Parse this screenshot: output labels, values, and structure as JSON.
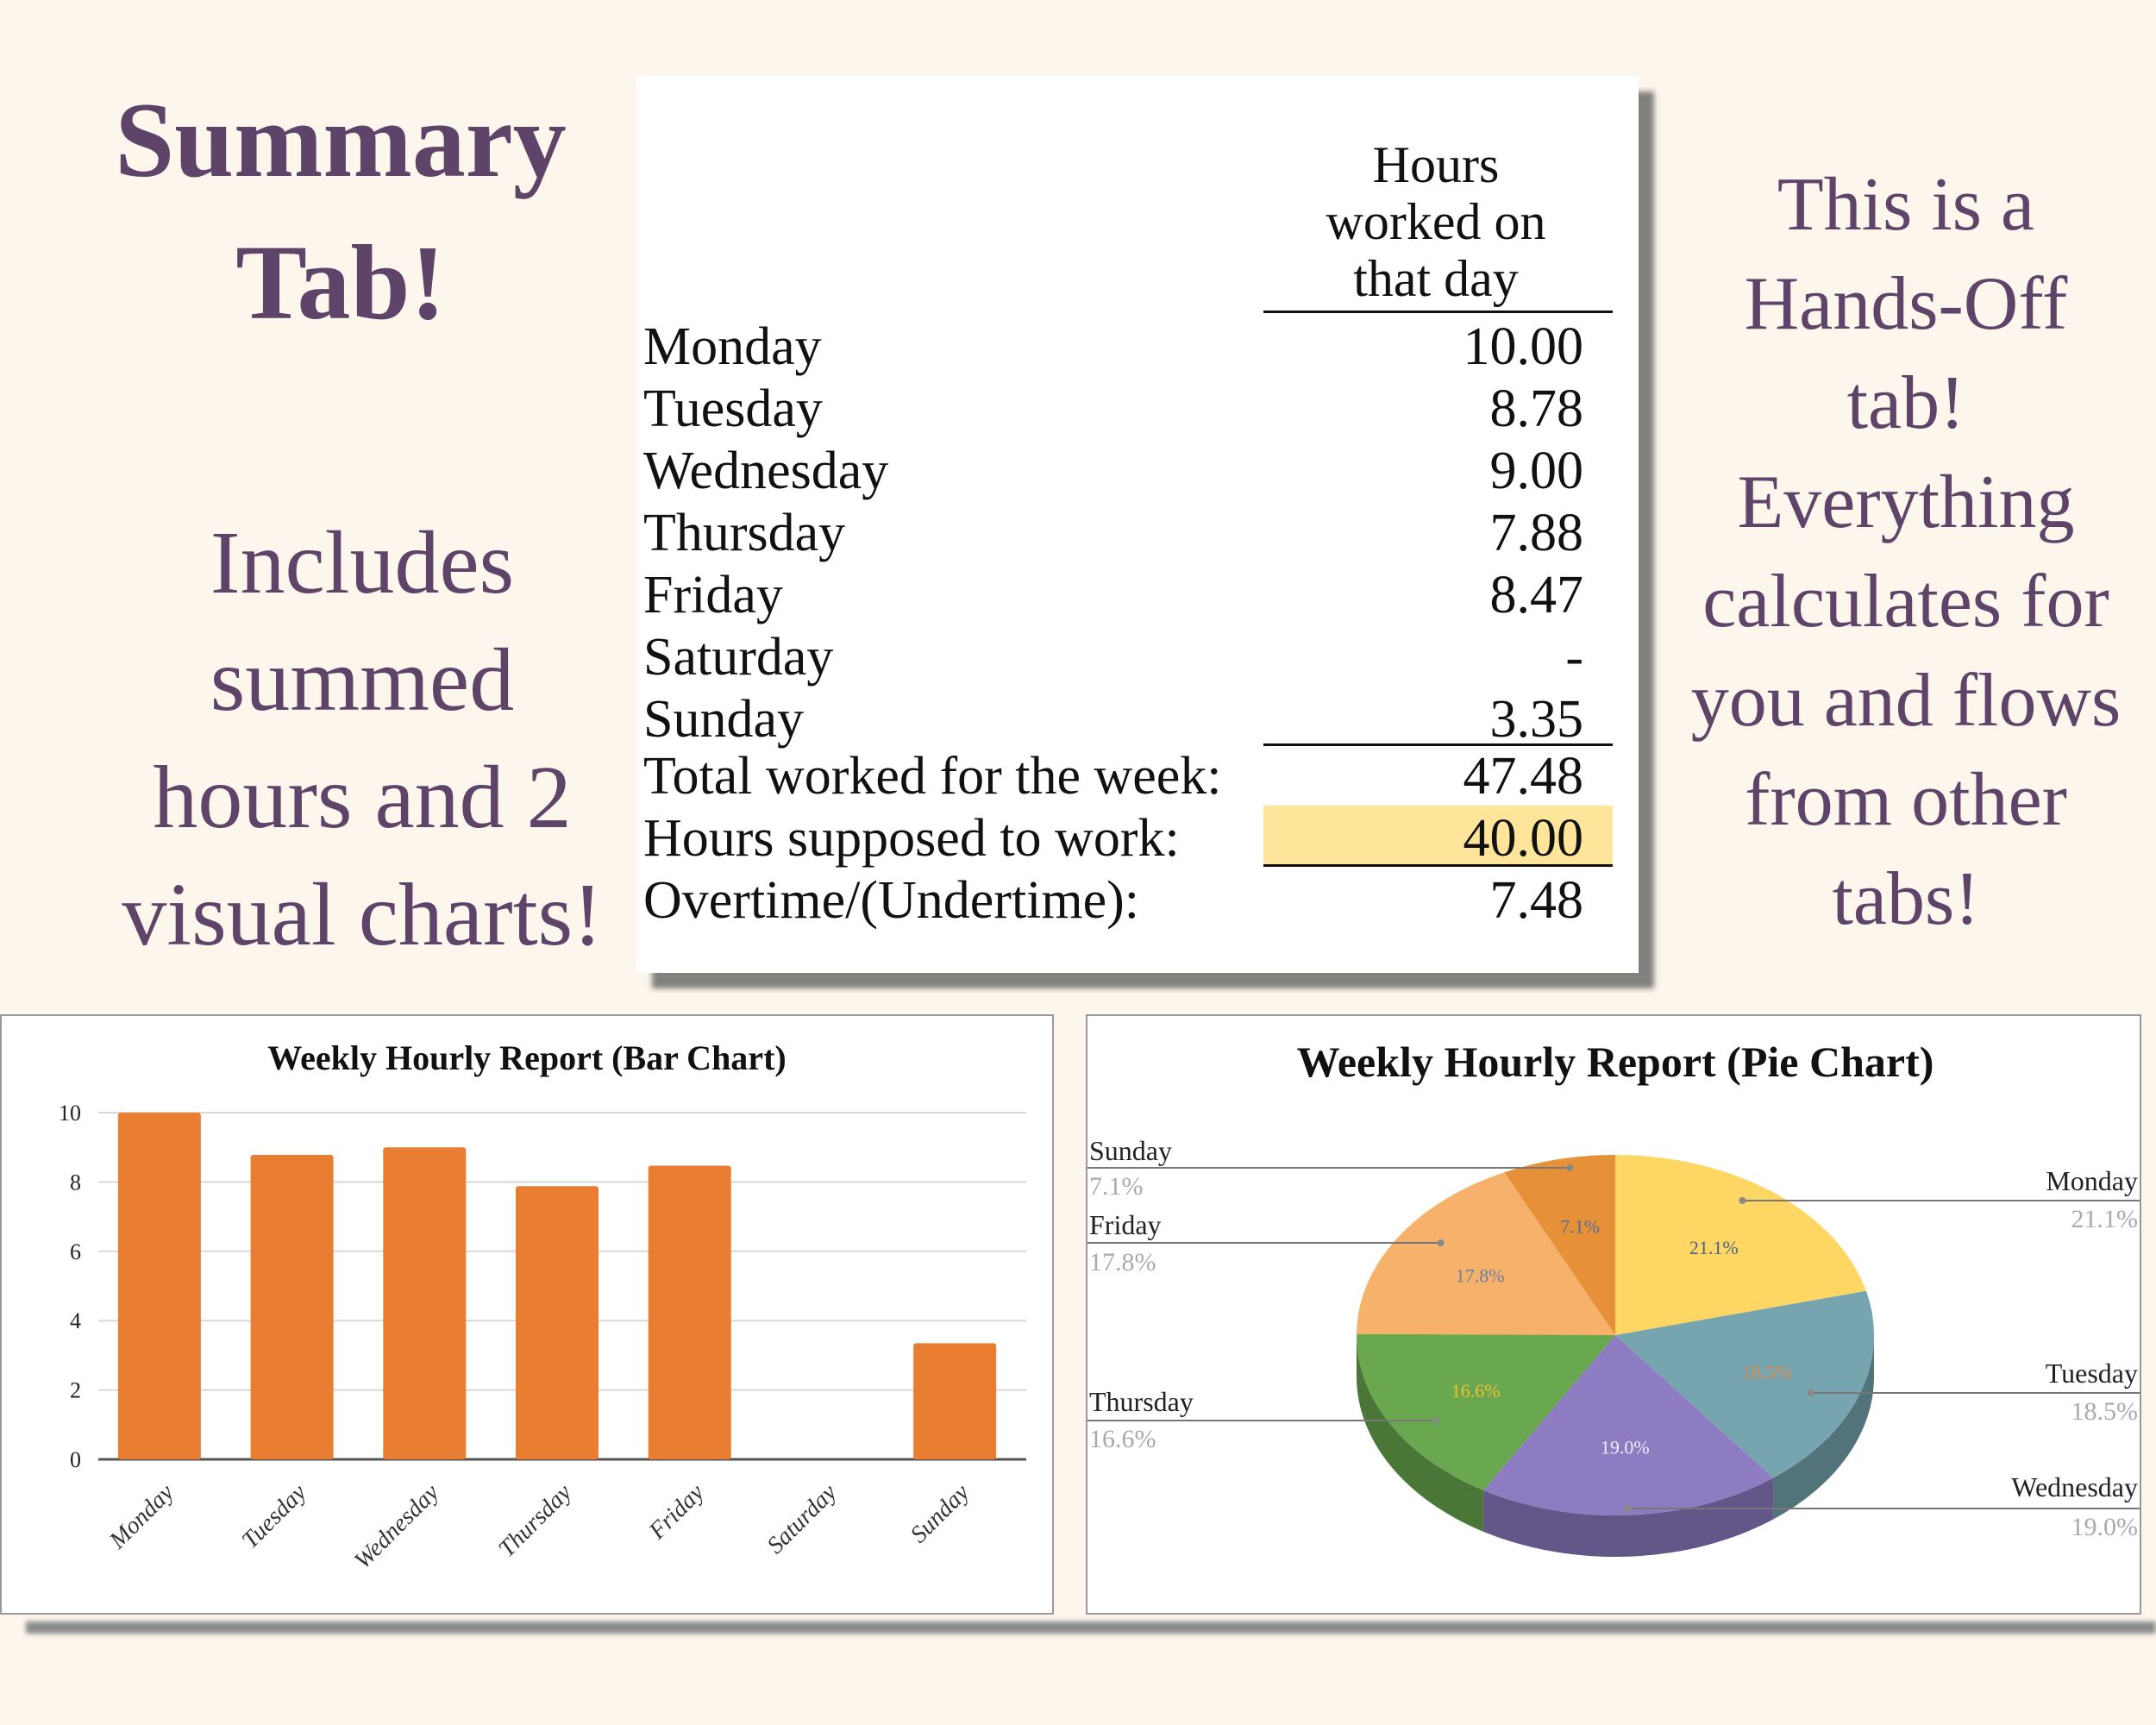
{
  "title": [
    "Summary",
    "Tab!"
  ],
  "left_text": [
    "Includes",
    "summed",
    "hours and 2",
    "visual charts!"
  ],
  "right_text": [
    "This is a",
    "Hands-Off",
    "tab!",
    "Everything",
    "calculates for",
    "you and flows",
    "from other",
    "tabs!"
  ],
  "table": {
    "header": [
      "Hours",
      "worked on",
      "that day"
    ],
    "rows": [
      {
        "label": "Monday",
        "value": "10.00"
      },
      {
        "label": "Tuesday",
        "value": "8.78"
      },
      {
        "label": "Wednesday",
        "value": "9.00"
      },
      {
        "label": "Thursday",
        "value": "7.88"
      },
      {
        "label": "Friday",
        "value": "8.47"
      },
      {
        "label": "Saturday",
        "value": "-"
      },
      {
        "label": "Sunday",
        "value": "3.35"
      }
    ],
    "total": {
      "label": "Total worked for the week:",
      "value": "47.48"
    },
    "expected": {
      "label": "Hours supposed to work:",
      "value": "40.00"
    },
    "overtime": {
      "label": "Overtime/(Undertime):",
      "value": "7.48"
    },
    "highlight_color": "#fee599"
  },
  "chart_data": [
    {
      "type": "bar",
      "title": "Weekly Hourly Report (Bar Chart)",
      "categories": [
        "Monday",
        "Tuesday",
        "Wednesday",
        "Thursday",
        "Friday",
        "Saturday",
        "Sunday"
      ],
      "values": [
        10.0,
        8.78,
        9.0,
        7.88,
        8.47,
        0,
        3.35
      ],
      "yticks": [
        "0",
        "2",
        "4",
        "6",
        "8",
        "10"
      ],
      "ylim": [
        0,
        10
      ],
      "xlabel": "",
      "ylabel": "",
      "grid": true,
      "color": "#e97d32"
    },
    {
      "type": "pie",
      "title": "Weekly Hourly Report (Pie Chart)",
      "slices": [
        {
          "label": "Monday",
          "value": 10.0,
          "percent": "21.1%",
          "color": "#fdd663",
          "inner_color": "#4a5f8a"
        },
        {
          "label": "Tuesday",
          "value": 8.78,
          "percent": "18.5%",
          "color": "#76a5af",
          "inner_color": "#d98a4a"
        },
        {
          "label": "Wednesday",
          "value": 9.0,
          "percent": "19.0%",
          "color": "#8e7cc3",
          "inner_color": "#eeeefa"
        },
        {
          "label": "Thursday",
          "value": 7.88,
          "percent": "16.6%",
          "color": "#6aa84f",
          "inner_color": "#f1c232"
        },
        {
          "label": "Friday",
          "value": 8.47,
          "percent": "17.8%",
          "color": "#f6b26b",
          "inner_color": "#6a7fa0"
        },
        {
          "label": "Sunday",
          "value": 3.35,
          "percent": "7.1%",
          "color": "#e69138",
          "inner_color": "#5a6a9a"
        }
      ]
    }
  ]
}
